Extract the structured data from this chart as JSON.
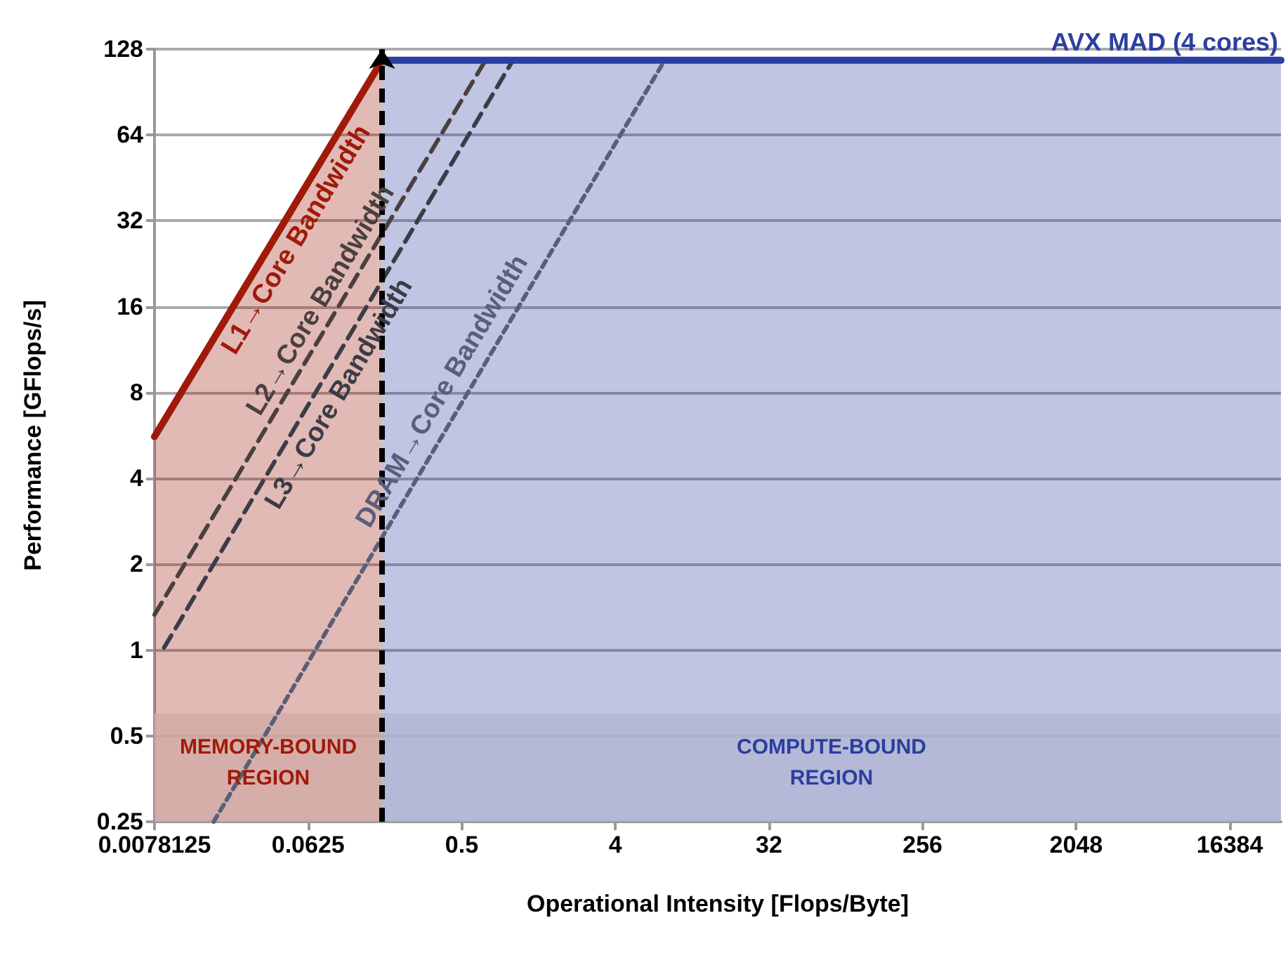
{
  "chart_data": {
    "type": "line",
    "xlabel": "Operational Intensity [Flops/Byte]",
    "ylabel": "Performance [GFlops/s]",
    "log": "xy",
    "grid": "y",
    "legend": false,
    "xlim": [
      0.0078125,
      32768
    ],
    "xticks": [
      0.0078125,
      0.0625,
      0.5,
      4,
      32,
      256,
      2048,
      16384
    ],
    "ylim": [
      0.25,
      128
    ],
    "yticks": [
      0.25,
      0.5,
      1,
      2,
      4,
      8,
      16,
      32,
      64,
      128
    ],
    "series": [
      {
        "name": "L1→Core Bandwidth",
        "type": "area",
        "color": "#a01a0a",
        "line_style": "solid",
        "x": [
          0.0078125,
          0.17
        ],
        "values": [
          5.6,
          117
        ]
      },
      {
        "name": "L2→Core Bandwidth",
        "color": "#4a4040",
        "line_style": "dashed",
        "x": [
          0.0078125,
          0.69
        ],
        "values": [
          1.33,
          117
        ]
      },
      {
        "name": "L3→Core Bandwidth",
        "color": "#3c3c48",
        "line_style": "dashed",
        "x": [
          0.0089,
          1.0
        ],
        "values": [
          1.02,
          117
        ]
      },
      {
        "name": "DRAM→Core Bandwidth",
        "color": "#5a5f78",
        "line_style": "dotted",
        "x": [
          0.0174,
          7.8
        ],
        "values": [
          0.25,
          117
        ]
      },
      {
        "name": "AVX MAD (4 cores)",
        "type": "area",
        "color": "#2b3fa0",
        "line_style": "solid",
        "x": [
          0.17,
          32768
        ],
        "values": [
          117,
          117
        ]
      }
    ],
    "ref_lines": [
      {
        "axis": "x",
        "value": 0.17,
        "color": "#000000",
        "line_style": "dashed"
      }
    ],
    "bands": [
      {
        "axis": "y",
        "from": 0.25,
        "to": 0.6,
        "color": "#ebebeb"
      }
    ],
    "annotations": [
      "MEMORY-BOUND\nREGION",
      "COMPUTE-BOUND\nREGION"
    ]
  }
}
